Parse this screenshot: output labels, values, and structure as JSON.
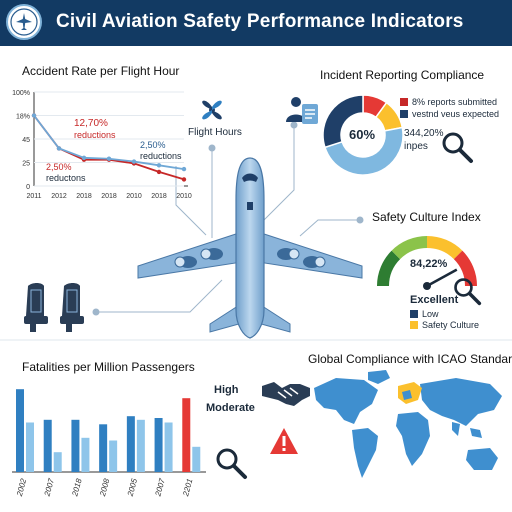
{
  "header": {
    "title": "Civil Aviation Safety Performance Indicators",
    "logo_icon": "airplane-emblem-icon"
  },
  "accident_rate": {
    "title": "Accident Rate per Flight Hour",
    "annotations": {
      "a1_value": "12,70%",
      "a1_label": "reductions",
      "a2_value": "2,50%",
      "a2_label": "reductions",
      "a3_value": "2,50%",
      "a3_label": "reductons"
    }
  },
  "flight_hours": {
    "label": "Flight Hours",
    "icon": "propeller-icon"
  },
  "incident": {
    "title": "Incident Reporting Compliance",
    "center_label": "60%",
    "legend_1": "8% reports submitted",
    "legend_2": "vestnd veus expected",
    "stat_value": "344,20%",
    "stat_label": "inpes",
    "icon_left": "people-reporting-icon",
    "icon_search": "magnifier-icon"
  },
  "safety_culture": {
    "title": "Safety Culture Index",
    "gauge_value": "84,22%",
    "gauge_label": "Excellent",
    "legend_low": "Low",
    "legend_culture": "Safety Culture",
    "icon_search": "magnifier-icon"
  },
  "seats": {
    "icon": "aircraft-seats-icon"
  },
  "fatalities": {
    "title": "Fatalities per Million Passengers",
    "label_high": "High",
    "label_moderate": "Moderate",
    "icon_search": "magnifier-icon"
  },
  "compliance": {
    "title": "Global Compliance with ICAO Standards",
    "icon_handshake": "handshake-icon",
    "icon_warning": "warning-icon"
  },
  "chart_data": [
    {
      "type": "line",
      "title": "Accident Rate per Flight Hour",
      "x": [
        "2011",
        "2012",
        "2018",
        "2018",
        "2010",
        "2018",
        "2010"
      ],
      "y_ticks": [
        "100%",
        "18%",
        "45",
        "25",
        "0"
      ],
      "series": [
        {
          "color": "#c62828",
          "values": [
            75,
            40,
            28,
            28,
            24,
            15,
            7
          ]
        },
        {
          "color": "#6fa8d6",
          "values": [
            75,
            40,
            30,
            29,
            26,
            22,
            18
          ]
        }
      ],
      "ylim": [
        0,
        100
      ],
      "grid": true
    },
    {
      "type": "pie",
      "title": "Incident Reporting Compliance",
      "slices": [
        {
          "value": 10,
          "color": "#e53935"
        },
        {
          "value": 12,
          "color": "#fbc02d"
        },
        {
          "value": 48,
          "color": "#7fb8e0"
        },
        {
          "value": 30,
          "color": "#1f3f68"
        }
      ]
    },
    {
      "type": "bar",
      "title": "Fatalities per Million Passengers",
      "categories": [
        "2002",
        "2007",
        "2018",
        "2008",
        "2005",
        "2007",
        "2201"
      ],
      "series": [
        {
          "color": "#2f7fc1",
          "values": [
            92,
            58,
            58,
            53,
            62,
            60,
            82
          ]
        },
        {
          "color": "#8ec5ea",
          "values": [
            55,
            22,
            38,
            35,
            58,
            55,
            28
          ]
        }
      ],
      "highlight": {
        "index": 6,
        "color": "#e53935"
      },
      "ylim": [
        0,
        100
      ]
    }
  ]
}
